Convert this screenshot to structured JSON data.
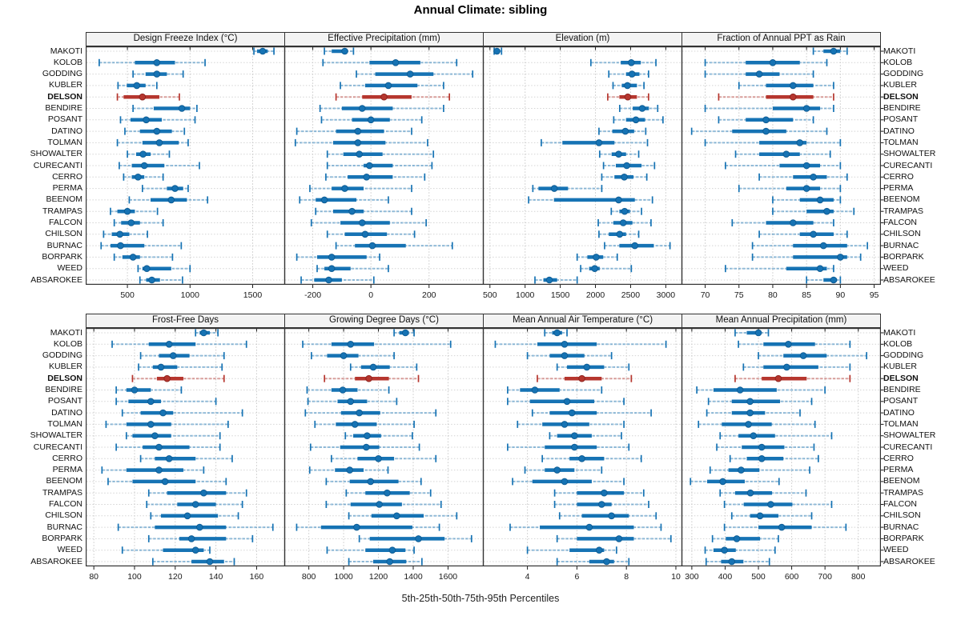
{
  "title": "Annual Climate: sibling",
  "caption": "5th-25th-50th-75th-95th Percentiles",
  "percentile_labels": [
    "5th",
    "25th",
    "50th",
    "75th",
    "95th"
  ],
  "stations": [
    "MAKOTI",
    "KOLOB",
    "GODDING",
    "KUBLER",
    "DELSON",
    "BENDIRE",
    "POSANT",
    "DATINO",
    "TOLMAN",
    "SHOWALTER",
    "CURECANTI",
    "CERRO",
    "PERMA",
    "BEENOM",
    "TRAMPAS",
    "FALCON",
    "CHILSON",
    "BURNAC",
    "BORPARK",
    "WEED",
    "ABSAROKEE"
  ],
  "highlight_station": "DELSON",
  "colors": {
    "series_blue": "#1673b4",
    "series_blue_dark": "#0e5c94",
    "highlight_red": "#b6362e",
    "highlight_red_dark": "#8e241f",
    "grid": "#c9c9c9",
    "row_grid": "#d4d4d4",
    "panel_border": "#333333",
    "header_bg": "#f3f3f3",
    "text": "#1a1a1a"
  },
  "chart_data": [
    {
      "type": "boxplot-range",
      "title": "Design Freeze Index (°C)",
      "ticks": [
        500,
        1000,
        1500
      ],
      "range": [
        167,
        1759
      ],
      "values": [
        [
          1510,
          1535,
          1580,
          1620,
          1670
        ],
        [
          275,
          560,
          735,
          880,
          1120
        ],
        [
          545,
          645,
          735,
          815,
          945
        ],
        [
          425,
          495,
          575,
          645,
          735
        ],
        [
          420,
          470,
          620,
          755,
          915
        ],
        [
          545,
          710,
          935,
          1000,
          1055
        ],
        [
          445,
          525,
          650,
          775,
          1040
        ],
        [
          480,
          600,
          735,
          855,
          955
        ],
        [
          420,
          620,
          755,
          910,
          985
        ],
        [
          500,
          570,
          625,
          685,
          835
        ],
        [
          435,
          535,
          635,
          795,
          1075
        ],
        [
          470,
          535,
          585,
          635,
          785
        ],
        [
          620,
          815,
          880,
          945,
          985
        ],
        [
          515,
          685,
          850,
          975,
          1140
        ],
        [
          365,
          420,
          500,
          560,
          740
        ],
        [
          395,
          450,
          530,
          600,
          785
        ],
        [
          310,
          375,
          440,
          515,
          660
        ],
        [
          290,
          365,
          445,
          635,
          930
        ],
        [
          395,
          460,
          545,
          600,
          860
        ],
        [
          585,
          620,
          655,
          850,
          1000
        ],
        [
          600,
          650,
          695,
          760,
          940
        ]
      ]
    },
    {
      "type": "boxplot-range",
      "title": "Effective Precipitation (mm)",
      "ticks": [
        -200,
        0,
        200
      ],
      "range": [
        -298,
        388
      ],
      "values": [
        [
          -160,
          -135,
          -90,
          -80,
          -60
        ],
        [
          -165,
          -5,
          85,
          170,
          295
        ],
        [
          -50,
          15,
          135,
          215,
          350
        ],
        [
          -105,
          -20,
          60,
          160,
          250
        ],
        [
          -120,
          -30,
          45,
          140,
          270
        ],
        [
          -175,
          -100,
          -30,
          75,
          250
        ],
        [
          -170,
          -65,
          0,
          65,
          175
        ],
        [
          -255,
          -120,
          -45,
          45,
          140
        ],
        [
          -260,
          -130,
          -45,
          50,
          195
        ],
        [
          -150,
          -95,
          -40,
          40,
          215
        ],
        [
          -150,
          -25,
          -5,
          75,
          210
        ],
        [
          -155,
          -80,
          -15,
          75,
          185
        ],
        [
          -210,
          -135,
          -90,
          -25,
          140
        ],
        [
          -245,
          -190,
          -160,
          -50,
          60
        ],
        [
          -190,
          -130,
          -65,
          -25,
          140
        ],
        [
          -205,
          -105,
          -30,
          65,
          190
        ],
        [
          -150,
          -90,
          -20,
          55,
          150
        ],
        [
          -120,
          -55,
          5,
          120,
          280
        ],
        [
          -255,
          -185,
          -135,
          -15,
          30
        ],
        [
          -185,
          -160,
          -135,
          -70,
          60
        ],
        [
          -240,
          -195,
          -145,
          -100,
          10
        ]
      ]
    },
    {
      "type": "boxplot-range",
      "title": "Elevation (m)",
      "ticks": [
        500,
        1000,
        1500,
        2000,
        2500,
        3000
      ],
      "range": [
        400,
        3235
      ],
      "values": [
        [
          560,
          580,
          600,
          630,
          665
        ],
        [
          1935,
          2360,
          2510,
          2645,
          2860
        ],
        [
          2190,
          2435,
          2520,
          2625,
          2755
        ],
        [
          2250,
          2375,
          2455,
          2590,
          2690
        ],
        [
          2175,
          2340,
          2460,
          2590,
          2755
        ],
        [
          2345,
          2530,
          2665,
          2760,
          2885
        ],
        [
          2260,
          2435,
          2575,
          2705,
          2960
        ],
        [
          2050,
          2240,
          2425,
          2550,
          2715
        ],
        [
          1230,
          1530,
          2050,
          2270,
          2740
        ],
        [
          2060,
          2230,
          2330,
          2435,
          2615
        ],
        [
          2115,
          2290,
          2445,
          2655,
          2840
        ],
        [
          2090,
          2270,
          2410,
          2540,
          2730
        ],
        [
          1110,
          1190,
          1415,
          1610,
          2090
        ],
        [
          1050,
          1410,
          2330,
          2560,
          2810
        ],
        [
          2225,
          2340,
          2415,
          2490,
          2655
        ],
        [
          2040,
          2255,
          2395,
          2525,
          2790
        ],
        [
          2050,
          2190,
          2345,
          2435,
          2615
        ],
        [
          2130,
          2340,
          2560,
          2830,
          3060
        ],
        [
          1740,
          1885,
          2010,
          2110,
          2310
        ],
        [
          1790,
          1910,
          1990,
          2060,
          2510
        ],
        [
          1140,
          1260,
          1345,
          1455,
          1740
        ]
      ]
    },
    {
      "type": "boxplot-range",
      "title": "Fraction of Annual PPT as Rain",
      "ticks": [
        70,
        75,
        80,
        85,
        90,
        95
      ],
      "range": [
        66.5,
        96
      ],
      "values": [
        [
          86,
          87.5,
          89,
          90,
          91
        ],
        [
          70,
          76,
          80,
          84,
          88
        ],
        [
          70,
          76,
          78,
          81,
          86
        ],
        [
          75,
          79,
          83,
          86,
          89
        ],
        [
          72,
          79,
          83,
          86,
          89
        ],
        [
          70,
          80,
          85,
          87,
          89
        ],
        [
          72,
          76,
          79,
          83,
          86
        ],
        [
          68,
          74,
          79,
          82,
          88
        ],
        [
          70,
          78,
          84,
          85,
          90
        ],
        [
          74.5,
          78,
          82,
          84,
          88.5
        ],
        [
          73,
          81,
          85,
          87,
          90
        ],
        [
          78,
          83,
          86,
          88,
          91
        ],
        [
          75,
          82,
          85,
          87,
          90
        ],
        [
          80,
          84,
          87,
          89,
          90
        ],
        [
          80,
          85,
          88,
          89,
          92
        ],
        [
          74,
          79,
          83,
          86,
          89
        ],
        [
          78,
          84,
          86,
          89,
          91
        ],
        [
          77,
          83,
          87.5,
          91,
          94
        ],
        [
          77,
          83,
          90,
          91,
          93
        ],
        [
          73,
          82,
          87,
          88,
          89
        ],
        [
          85,
          87.5,
          89,
          89.5,
          90
        ]
      ]
    },
    {
      "type": "boxplot-range",
      "title": "Frost-Free Days",
      "ticks": [
        80,
        100,
        120,
        140,
        160
      ],
      "range": [
        76,
        174
      ],
      "values": [
        [
          130,
          132,
          134,
          137,
          141
        ],
        [
          89,
          107,
          117,
          130,
          155
        ],
        [
          103,
          112,
          119,
          127,
          144
        ],
        [
          102,
          109,
          113,
          121,
          143
        ],
        [
          99,
          111,
          116,
          124,
          144
        ],
        [
          91,
          96,
          100,
          108,
          123
        ],
        [
          91,
          97,
          108,
          113,
          140
        ],
        [
          94,
          103,
          114,
          119,
          153
        ],
        [
          86,
          96,
          108,
          118,
          146
        ],
        [
          96,
          99,
          110,
          118,
          142
        ],
        [
          91,
          104,
          112,
          127,
          142
        ],
        [
          103,
          110,
          117,
          130,
          148
        ],
        [
          84,
          96,
          112,
          124,
          134
        ],
        [
          87,
          99,
          115,
          130,
          145
        ],
        [
          107,
          116,
          134,
          145,
          155
        ],
        [
          106,
          121,
          130,
          140,
          153
        ],
        [
          108,
          113,
          126,
          141,
          151
        ],
        [
          92,
          110,
          132,
          145,
          168
        ],
        [
          107,
          122,
          128,
          145,
          158
        ],
        [
          94,
          114,
          130,
          134,
          137
        ],
        [
          109,
          128,
          137,
          144,
          149
        ]
      ]
    },
    {
      "type": "boxplot-range",
      "title": "Growing Degree Days (°C)",
      "ticks": [
        800,
        1000,
        1200,
        1400,
        1600
      ],
      "range": [
        659,
        1805
      ],
      "values": [
        [
          1290,
          1320,
          1355,
          1375,
          1405
        ],
        [
          765,
          930,
          1040,
          1175,
          1615
        ],
        [
          815,
          905,
          1000,
          1085,
          1290
        ],
        [
          1040,
          1100,
          1170,
          1265,
          1420
        ],
        [
          890,
          1065,
          1145,
          1260,
          1430
        ],
        [
          790,
          930,
          995,
          1080,
          1260
        ],
        [
          795,
          965,
          1040,
          1135,
          1305
        ],
        [
          780,
          985,
          1090,
          1210,
          1530
        ],
        [
          835,
          955,
          1065,
          1190,
          1405
        ],
        [
          1010,
          1055,
          1135,
          1215,
          1395
        ],
        [
          810,
          980,
          1130,
          1205,
          1435
        ],
        [
          930,
          1080,
          1200,
          1290,
          1530
        ],
        [
          805,
          950,
          1035,
          1115,
          1255
        ],
        [
          900,
          1035,
          1155,
          1315,
          1445
        ],
        [
          1015,
          1125,
          1250,
          1380,
          1500
        ],
        [
          900,
          1040,
          1205,
          1335,
          1560
        ],
        [
          1030,
          1160,
          1305,
          1460,
          1650
        ],
        [
          730,
          870,
          1075,
          1395,
          1550
        ],
        [
          1090,
          1150,
          1430,
          1580,
          1735
        ],
        [
          905,
          1125,
          1280,
          1355,
          1405
        ],
        [
          1030,
          1170,
          1265,
          1360,
          1450
        ]
      ]
    },
    {
      "type": "boxplot-range",
      "title": "Mean Annual Air Temperature (°C)",
      "ticks": [
        4,
        6,
        8,
        10
      ],
      "range": [
        2.2,
        10.26
      ],
      "values": [
        [
          4.7,
          5.0,
          5.2,
          5.4,
          5.6
        ],
        [
          2.7,
          4.4,
          5.5,
          6.8,
          9.6
        ],
        [
          4.0,
          4.9,
          5.5,
          6.3,
          7.4
        ],
        [
          5.2,
          5.6,
          6.4,
          7.1,
          8.1
        ],
        [
          4.4,
          5.5,
          6.2,
          7.0,
          8.2
        ],
        [
          3.2,
          3.7,
          4.3,
          5.3,
          7.0
        ],
        [
          3.2,
          4.1,
          5.6,
          6.7,
          7.9
        ],
        [
          4.2,
          4.9,
          5.8,
          6.8,
          9.0
        ],
        [
          3.6,
          4.6,
          5.5,
          6.5,
          7.9
        ],
        [
          4.9,
          5.2,
          5.9,
          6.6,
          7.8
        ],
        [
          3.2,
          4.7,
          5.9,
          6.8,
          8.1
        ],
        [
          4.6,
          5.7,
          6.2,
          7.1,
          8.6
        ],
        [
          3.9,
          4.7,
          5.2,
          5.9,
          7.0
        ],
        [
          3.4,
          4.2,
          5.5,
          6.6,
          7.9
        ],
        [
          5.1,
          6.0,
          7.1,
          7.9,
          8.7
        ],
        [
          5.1,
          6.0,
          7.0,
          7.4,
          8.9
        ],
        [
          5.3,
          6.2,
          7.4,
          8.1,
          9.2
        ],
        [
          3.3,
          4.5,
          6.5,
          8.3,
          9.4
        ],
        [
          5.2,
          6.0,
          7.7,
          8.3,
          9.8
        ],
        [
          4.0,
          5.7,
          6.9,
          7.1,
          7.6
        ],
        [
          5.2,
          6.5,
          7.2,
          7.5,
          8.1
        ]
      ]
    },
    {
      "type": "boxplot-range",
      "title": "Mean Annual Precipitation (mm)",
      "ticks": [
        300,
        400,
        500,
        600,
        700,
        800
      ],
      "range": [
        269,
        868
      ],
      "values": [
        [
          430,
          465,
          500,
          508,
          530
        ],
        [
          440,
          515,
          590,
          670,
          775
        ],
        [
          500,
          575,
          635,
          705,
          825
        ],
        [
          455,
          515,
          585,
          680,
          775
        ],
        [
          430,
          510,
          560,
          645,
          775
        ],
        [
          315,
          365,
          445,
          555,
          700
        ],
        [
          350,
          420,
          475,
          565,
          660
        ],
        [
          345,
          420,
          475,
          520,
          625
        ],
        [
          320,
          390,
          470,
          540,
          670
        ],
        [
          385,
          440,
          485,
          550,
          720
        ],
        [
          375,
          450,
          510,
          578,
          667
        ],
        [
          415,
          465,
          510,
          575,
          680
        ],
        [
          355,
          410,
          448,
          503,
          654
        ],
        [
          296,
          346,
          393,
          459,
          562
        ],
        [
          385,
          430,
          476,
          541,
          643
        ],
        [
          398,
          456,
          537,
          602,
          720
        ],
        [
          420,
          475,
          505,
          560,
          660
        ],
        [
          398,
          500,
          570,
          660,
          763
        ],
        [
          362,
          402,
          435,
          505,
          560
        ],
        [
          340,
          365,
          398,
          432,
          550
        ],
        [
          343,
          388,
          420,
          455,
          533
        ]
      ]
    }
  ]
}
